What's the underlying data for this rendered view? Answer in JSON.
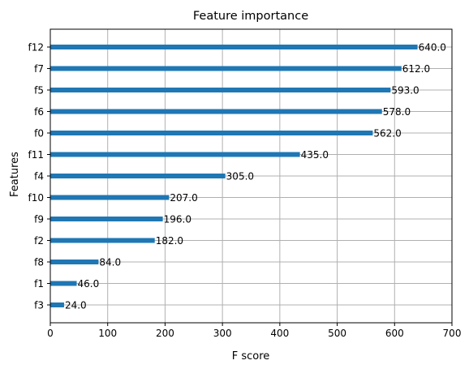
{
  "chart_data": {
    "type": "bar",
    "orientation": "horizontal",
    "title": "Feature importance",
    "xlabel": "F score",
    "ylabel": "Features",
    "xlim": [
      0,
      700
    ],
    "xticks": [
      0,
      100,
      200,
      300,
      400,
      500,
      600,
      700
    ],
    "grid": true,
    "categories": [
      "f12",
      "f7",
      "f5",
      "f6",
      "f0",
      "f11",
      "f4",
      "f10",
      "f9",
      "f2",
      "f8",
      "f1",
      "f3"
    ],
    "values": [
      640,
      612,
      593,
      578,
      562,
      435,
      305,
      207,
      196,
      182,
      84,
      46,
      24
    ],
    "data_labels": [
      "640.0",
      "612.0",
      "593.0",
      "578.0",
      "562.0",
      "435.0",
      "305.0",
      "207.0",
      "196.0",
      "182.0",
      "84.0",
      "46.0",
      "24.0"
    ],
    "colors": {
      "bar": "#1f77b4",
      "grid": "#b0b0b0",
      "axis": "#000000"
    }
  }
}
